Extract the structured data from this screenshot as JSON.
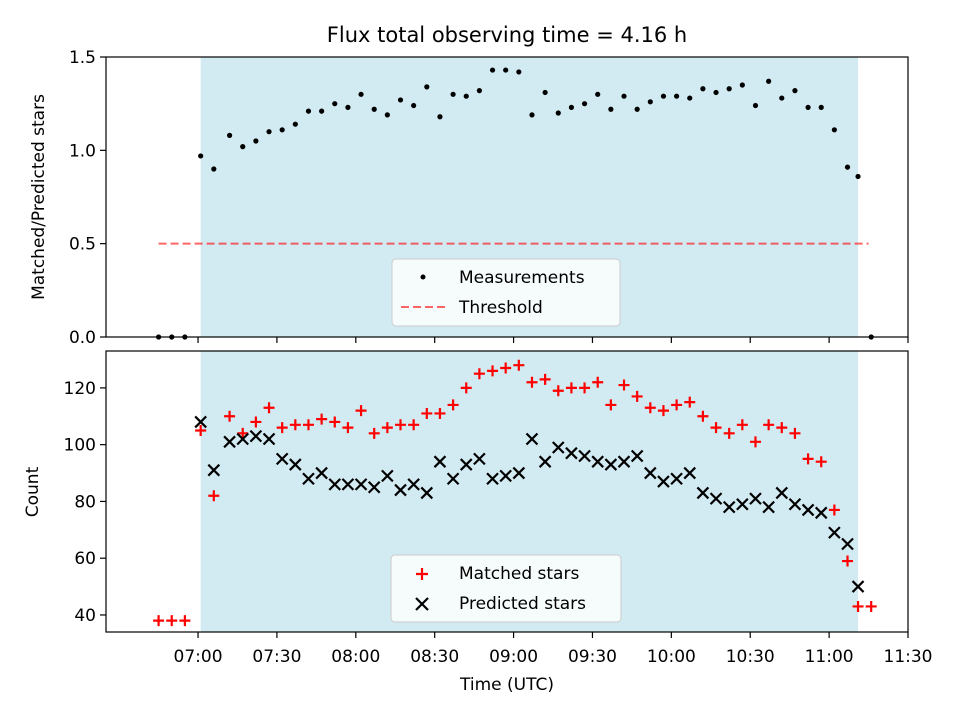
{
  "title": "Flux total observing time = 4.16 h",
  "xlabel": "Time (UTC)",
  "x_ticks": [
    "07:00",
    "07:30",
    "08:00",
    "08:30",
    "09:00",
    "09:30",
    "10:00",
    "10:30",
    "11:00",
    "11:30"
  ],
  "colors": {
    "shade": "#add8e6",
    "measurement": "#000000",
    "threshold": "#ff0000",
    "matched": "#ff0000",
    "predicted": "#000000"
  },
  "chart_data": [
    {
      "type": "scatter",
      "panel": "top",
      "ylabel": "Matched/Predicted stars",
      "xlim": [
        "06:25",
        "11:30"
      ],
      "ylim": [
        0,
        1.5
      ],
      "y_ticks": [
        "0.0",
        "0.5",
        "1.0",
        "1.5"
      ],
      "shaded_region": [
        "07:01",
        "11:11"
      ],
      "threshold": 0.5,
      "threshold_range": [
        "06:45",
        "11:15"
      ],
      "legend": {
        "position": "lower center",
        "entries": [
          "Measurements",
          "Threshold"
        ]
      },
      "series": [
        {
          "name": "Measurements",
          "marker": "dot",
          "x": [
            "06:45",
            "06:50",
            "06:55",
            "07:01",
            "07:06",
            "07:12",
            "07:17",
            "07:22",
            "07:27",
            "07:32",
            "07:37",
            "07:42",
            "07:47",
            "07:52",
            "07:57",
            "08:02",
            "08:07",
            "08:12",
            "08:17",
            "08:22",
            "08:27",
            "08:32",
            "08:37",
            "08:42",
            "08:47",
            "08:52",
            "08:57",
            "09:02",
            "09:07",
            "09:12",
            "09:17",
            "09:22",
            "09:27",
            "09:32",
            "09:37",
            "09:42",
            "09:47",
            "09:52",
            "09:57",
            "10:02",
            "10:07",
            "10:12",
            "10:17",
            "10:22",
            "10:27",
            "10:32",
            "10:37",
            "10:42",
            "10:47",
            "10:52",
            "10:57",
            "11:02",
            "11:07",
            "11:11",
            "11:16"
          ],
          "y": [
            0.0,
            0.0,
            0.0,
            0.97,
            0.9,
            1.08,
            1.02,
            1.05,
            1.1,
            1.11,
            1.14,
            1.21,
            1.21,
            1.25,
            1.23,
            1.3,
            1.22,
            1.19,
            1.27,
            1.24,
            1.34,
            1.18,
            1.3,
            1.29,
            1.32,
            1.43,
            1.43,
            1.42,
            1.19,
            1.31,
            1.2,
            1.23,
            1.25,
            1.3,
            1.22,
            1.29,
            1.22,
            1.26,
            1.29,
            1.29,
            1.28,
            1.33,
            1.31,
            1.33,
            1.35,
            1.24,
            1.37,
            1.28,
            1.32,
            1.23,
            1.23,
            1.11,
            0.91,
            0.86,
            0.0
          ]
        }
      ]
    },
    {
      "type": "scatter",
      "panel": "bottom",
      "ylabel": "Count",
      "xlim": [
        "06:25",
        "11:30"
      ],
      "ylim": [
        34,
        133
      ],
      "y_ticks": [
        "40",
        "60",
        "80",
        "100",
        "120"
      ],
      "shaded_region": [
        "07:01",
        "11:11"
      ],
      "legend": {
        "position": "lower center",
        "entries": [
          "Matched stars",
          "Predicted stars"
        ]
      },
      "series": [
        {
          "name": "Matched stars",
          "marker": "plus",
          "x": [
            "06:45",
            "06:50",
            "06:55",
            "07:01",
            "07:06",
            "07:12",
            "07:17",
            "07:22",
            "07:27",
            "07:32",
            "07:37",
            "07:42",
            "07:47",
            "07:52",
            "07:57",
            "08:02",
            "08:07",
            "08:12",
            "08:17",
            "08:22",
            "08:27",
            "08:32",
            "08:37",
            "08:42",
            "08:47",
            "08:52",
            "08:57",
            "09:02",
            "09:07",
            "09:12",
            "09:17",
            "09:22",
            "09:27",
            "09:32",
            "09:37",
            "09:42",
            "09:47",
            "09:52",
            "09:57",
            "10:02",
            "10:07",
            "10:12",
            "10:17",
            "10:22",
            "10:27",
            "10:32",
            "10:37",
            "10:42",
            "10:47",
            "10:52",
            "10:57",
            "11:02",
            "11:07",
            "11:11",
            "11:16"
          ],
          "y": [
            38,
            38,
            38,
            105,
            82,
            110,
            104,
            108,
            113,
            106,
            107,
            107,
            109,
            108,
            106,
            112,
            104,
            106,
            107,
            107,
            111,
            111,
            114,
            120,
            125,
            126,
            127,
            128,
            122,
            123,
            119,
            120,
            120,
            122,
            114,
            121,
            117,
            113,
            112,
            114,
            115,
            110,
            106,
            104,
            107,
            101,
            107,
            106,
            104,
            95,
            94,
            77,
            59,
            43,
            43
          ]
        },
        {
          "name": "Predicted stars",
          "marker": "x",
          "x": [
            "07:01",
            "07:06",
            "07:12",
            "07:17",
            "07:22",
            "07:27",
            "07:32",
            "07:37",
            "07:42",
            "07:47",
            "07:52",
            "07:57",
            "08:02",
            "08:07",
            "08:12",
            "08:17",
            "08:22",
            "08:27",
            "08:32",
            "08:37",
            "08:42",
            "08:47",
            "08:52",
            "08:57",
            "09:02",
            "09:07",
            "09:12",
            "09:17",
            "09:22",
            "09:27",
            "09:32",
            "09:37",
            "09:42",
            "09:47",
            "09:52",
            "09:57",
            "10:02",
            "10:07",
            "10:12",
            "10:17",
            "10:22",
            "10:27",
            "10:32",
            "10:37",
            "10:42",
            "10:47",
            "10:52",
            "10:57",
            "11:02",
            "11:07",
            "11:11"
          ],
          "y": [
            108,
            91,
            101,
            102,
            103,
            102,
            95,
            93,
            88,
            90,
            86,
            86,
            86,
            85,
            89,
            84,
            86,
            83,
            94,
            88,
            93,
            95,
            88,
            89,
            90,
            102,
            94,
            99,
            97,
            96,
            94,
            93,
            94,
            96,
            90,
            87,
            88,
            90,
            83,
            81,
            78,
            79,
            81,
            78,
            83,
            79,
            77,
            76,
            69,
            65,
            50
          ]
        }
      ]
    }
  ]
}
